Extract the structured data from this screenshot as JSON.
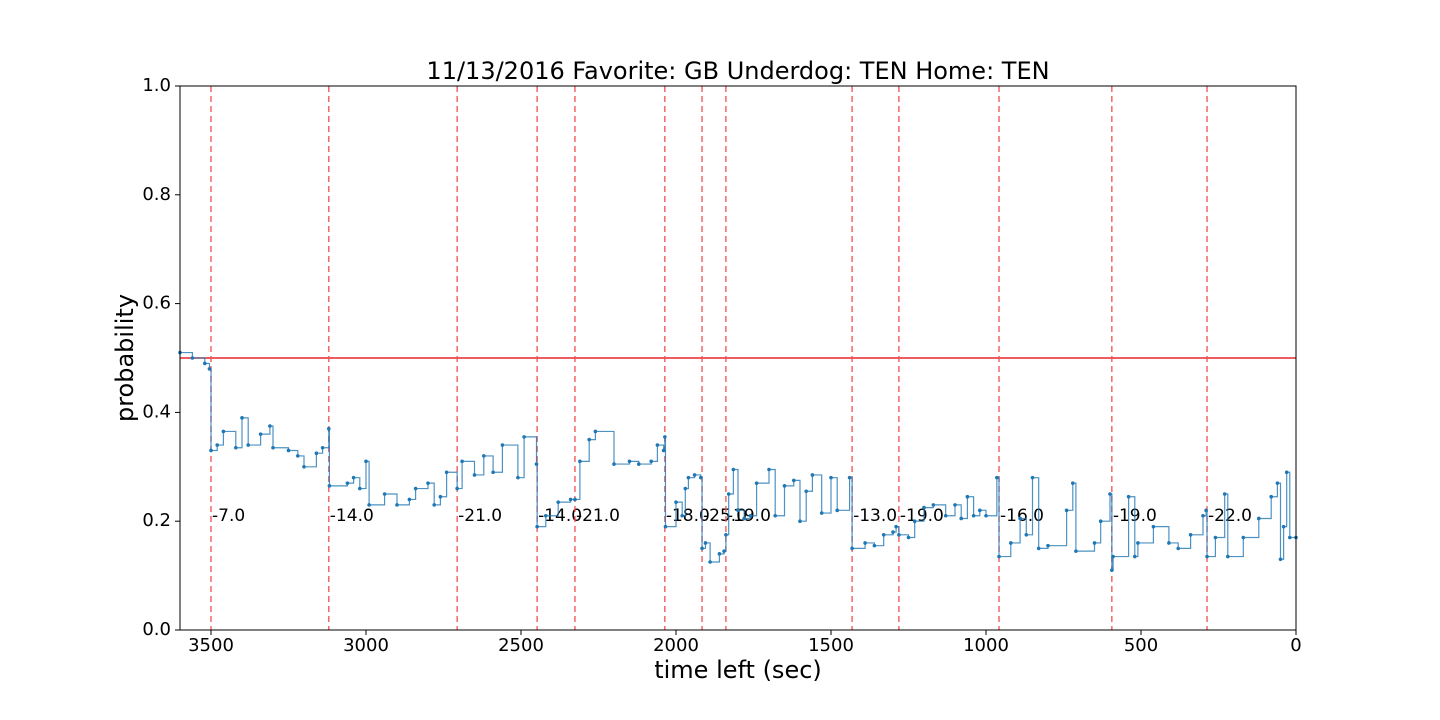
{
  "chart_data": {
    "type": "step",
    "title": "11/13/2016 Favorite: GB Underdog: TEN Home: TEN",
    "xlabel": "time left (sec)",
    "ylabel": "probability",
    "xlim": [
      3600,
      0
    ],
    "ylim": [
      0,
      1
    ],
    "xticks": [
      3500,
      3000,
      2500,
      2000,
      1500,
      1000,
      500,
      0
    ],
    "yticks": [
      {
        "value": 0,
        "label": "0.0"
      },
      {
        "value": 0.2,
        "label": "0.2"
      },
      {
        "value": 0.4,
        "label": "0.4"
      },
      {
        "value": 0.6,
        "label": "0.6"
      },
      {
        "value": 0.8,
        "label": "0.8"
      },
      {
        "value": 1,
        "label": "1.0"
      }
    ],
    "color": "#1f77b4",
    "hline": {
      "value": 0.5,
      "color": "#e8262a"
    },
    "events": {
      "color": "#f05050",
      "label_y": 0.21,
      "x": [
        3500,
        3120,
        2706,
        2448,
        2326,
        2036,
        1916,
        1839,
        1432,
        1281,
        958,
        594,
        287
      ],
      "labels": [
        "-7.0",
        "-14.0",
        "-21.0",
        "-14.0",
        "-21.0",
        "-18.0",
        "-25.0",
        "-19.0",
        "-13.0",
        "-19.0",
        "-16.0",
        "-19.0",
        "-22.0"
      ]
    },
    "x": [
      3600,
      3560,
      3520,
      3505,
      3500,
      3480,
      3460,
      3420,
      3400,
      3380,
      3340,
      3310,
      3300,
      3250,
      3220,
      3200,
      3160,
      3140,
      3120,
      3118,
      3060,
      3040,
      3020,
      3000,
      2990,
      2940,
      2900,
      2860,
      2840,
      2800,
      2780,
      2760,
      2740,
      2706,
      2690,
      2650,
      2620,
      2590,
      2560,
      2510,
      2490,
      2450,
      2448,
      2420,
      2380,
      2340,
      2326,
      2310,
      2280,
      2260,
      2200,
      2150,
      2120,
      2080,
      2060,
      2040,
      2036,
      2034,
      2000,
      1980,
      1970,
      1960,
      1940,
      1920,
      1916,
      1905,
      1890,
      1860,
      1845,
      1839,
      1830,
      1815,
      1800,
      1780,
      1760,
      1740,
      1700,
      1680,
      1650,
      1620,
      1600,
      1580,
      1560,
      1530,
      1500,
      1480,
      1440,
      1432,
      1390,
      1360,
      1330,
      1300,
      1290,
      1281,
      1250,
      1230,
      1200,
      1170,
      1130,
      1100,
      1080,
      1060,
      1040,
      1020,
      1000,
      965,
      958,
      920,
      890,
      870,
      850,
      830,
      800,
      740,
      720,
      710,
      650,
      630,
      600,
      594,
      590,
      540,
      520,
      510,
      460,
      410,
      380,
      340,
      300,
      290,
      287,
      260,
      230,
      220,
      170,
      120,
      80,
      60,
      50,
      40,
      30,
      20,
      0
    ],
    "values": [
      0.51,
      0.5,
      0.49,
      0.48,
      0.33,
      0.34,
      0.365,
      0.335,
      0.39,
      0.34,
      0.36,
      0.375,
      0.335,
      0.33,
      0.32,
      0.3,
      0.325,
      0.335,
      0.37,
      0.265,
      0.27,
      0.28,
      0.26,
      0.31,
      0.23,
      0.25,
      0.23,
      0.24,
      0.26,
      0.27,
      0.23,
      0.245,
      0.29,
      0.26,
      0.31,
      0.285,
      0.32,
      0.29,
      0.34,
      0.28,
      0.355,
      0.305,
      0.19,
      0.21,
      0.235,
      0.24,
      0.24,
      0.31,
      0.35,
      0.365,
      0.305,
      0.31,
      0.305,
      0.31,
      0.34,
      0.33,
      0.355,
      0.19,
      0.235,
      0.21,
      0.26,
      0.28,
      0.285,
      0.28,
      0.15,
      0.16,
      0.125,
      0.14,
      0.145,
      0.175,
      0.25,
      0.295,
      0.22,
      0.205,
      0.21,
      0.27,
      0.295,
      0.21,
      0.265,
      0.275,
      0.2,
      0.255,
      0.285,
      0.215,
      0.28,
      0.22,
      0.28,
      0.15,
      0.16,
      0.155,
      0.175,
      0.18,
      0.19,
      0.175,
      0.17,
      0.2,
      0.225,
      0.23,
      0.21,
      0.23,
      0.205,
      0.245,
      0.21,
      0.22,
      0.21,
      0.28,
      0.135,
      0.16,
      0.205,
      0.175,
      0.28,
      0.15,
      0.155,
      0.22,
      0.27,
      0.145,
      0.16,
      0.2,
      0.25,
      0.11,
      0.135,
      0.245,
      0.135,
      0.16,
      0.19,
      0.16,
      0.15,
      0.175,
      0.21,
      0.22,
      0.135,
      0.17,
      0.25,
      0.135,
      0.17,
      0.205,
      0.245,
      0.27,
      0.13,
      0.19,
      0.29,
      0.17,
      0.17
    ]
  }
}
